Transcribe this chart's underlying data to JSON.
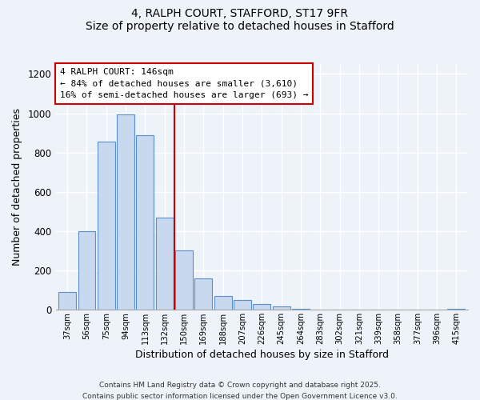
{
  "title1": "4, RALPH COURT, STAFFORD, ST17 9FR",
  "title2": "Size of property relative to detached houses in Stafford",
  "xlabel": "Distribution of detached houses by size in Stafford",
  "ylabel": "Number of detached properties",
  "categories": [
    "37sqm",
    "56sqm",
    "75sqm",
    "94sqm",
    "113sqm",
    "132sqm",
    "150sqm",
    "169sqm",
    "188sqm",
    "207sqm",
    "226sqm",
    "245sqm",
    "264sqm",
    "283sqm",
    "302sqm",
    "321sqm",
    "339sqm",
    "358sqm",
    "377sqm",
    "396sqm",
    "415sqm"
  ],
  "values": [
    90,
    400,
    855,
    995,
    890,
    470,
    300,
    160,
    70,
    50,
    30,
    15,
    2,
    0,
    0,
    0,
    0,
    0,
    0,
    0,
    2
  ],
  "bar_color": "#c8d9ef",
  "bar_edge_color": "#5b8fc9",
  "vline_index": 6,
  "vline_color": "#cc0000",
  "annotation_line1": "4 RALPH COURT: 146sqm",
  "annotation_line2": "← 84% of detached houses are smaller (3,610)",
  "annotation_line3": "16% of semi-detached houses are larger (693) →",
  "annotation_box_color": "#ffffff",
  "annotation_box_edge": "#cc0000",
  "ylim": [
    0,
    1250
  ],
  "yticks": [
    0,
    200,
    400,
    600,
    800,
    1000,
    1200
  ],
  "footer1": "Contains HM Land Registry data © Crown copyright and database right 2025.",
  "footer2": "Contains public sector information licensed under the Open Government Licence v3.0.",
  "bg_color": "#eef2f9",
  "plot_bg_color": "#eef2f9",
  "grid_color": "#ffffff",
  "title1_fontsize": 11,
  "title2_fontsize": 10
}
